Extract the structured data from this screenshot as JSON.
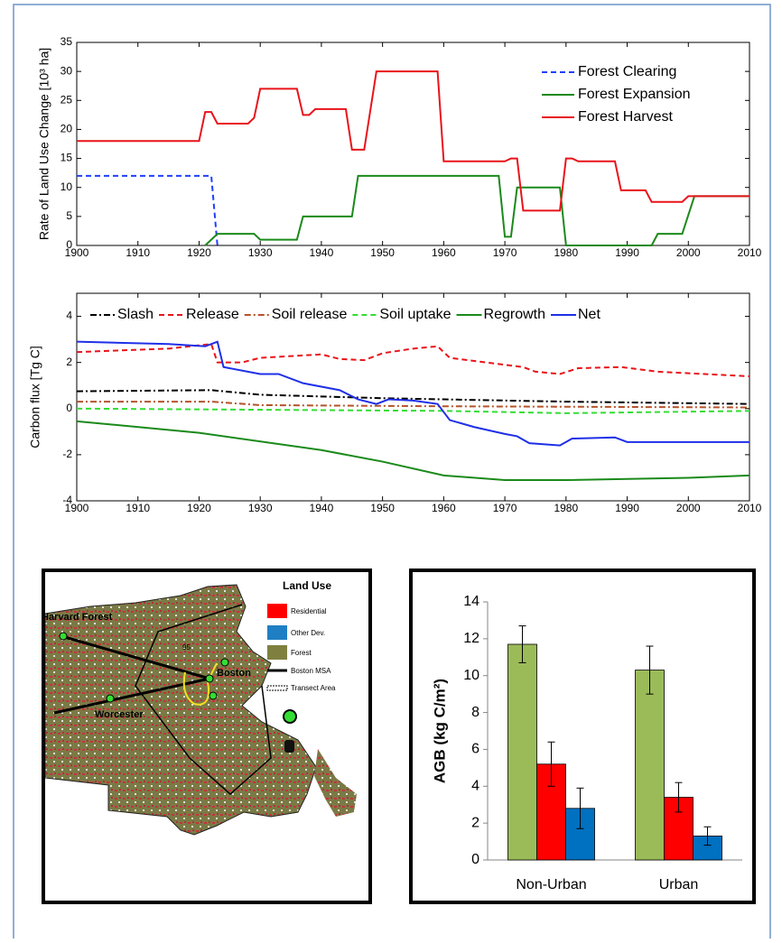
{
  "chart_data": [
    {
      "type": "line",
      "ylabel": "Rate of Land Use Change [10³ ha]",
      "xlim": [
        1900,
        2010
      ],
      "xticks": [
        1900,
        1910,
        1920,
        1930,
        1940,
        1950,
        1960,
        1970,
        1980,
        1990,
        2000,
        2010
      ],
      "ylim": [
        0,
        35
      ],
      "yticks": [
        0,
        5,
        10,
        15,
        20,
        25,
        30,
        35
      ],
      "legend": "upper right",
      "series": [
        {
          "name": "Forest Clearing",
          "color": "#1f3fff",
          "style": "dashed",
          "x": [
            1900,
            1922,
            1923
          ],
          "values": [
            12,
            12,
            0
          ]
        },
        {
          "name": "Forest Expansion",
          "color": "#1a8a1a",
          "style": "solid",
          "x": [
            1921,
            1923,
            1929,
            1930,
            1936,
            1937,
            1945,
            1946,
            1969,
            1970,
            1971,
            1972,
            1979,
            1980,
            1994,
            1995,
            1999,
            2001,
            2010
          ],
          "values": [
            0,
            2,
            2,
            1,
            1,
            5,
            5,
            12,
            12,
            1.5,
            1.5,
            10,
            10,
            0,
            0,
            2,
            2,
            8.5,
            8.5
          ]
        },
        {
          "name": "Forest Harvest",
          "color": "#e8141a",
          "style": "solid",
          "x": [
            1900,
            1920,
            1921,
            1922,
            1923,
            1928,
            1929,
            1930,
            1936,
            1937,
            1938,
            1939,
            1944,
            1945,
            1947,
            1949,
            1959,
            1960,
            1970,
            1971,
            1972,
            1973,
            1979,
            1980,
            1981,
            1982,
            1988,
            1989,
            1993,
            1994,
            1999,
            2000,
            2010
          ],
          "values": [
            18,
            18,
            23,
            23,
            21,
            21,
            22,
            27,
            27,
            22.5,
            22.5,
            23.5,
            23.5,
            16.5,
            16.5,
            30,
            30,
            14.5,
            14.5,
            15,
            15,
            6,
            6,
            15,
            15,
            14.5,
            14.5,
            9.5,
            9.5,
            7.5,
            7.5,
            8.5,
            8.5
          ]
        }
      ]
    },
    {
      "type": "line",
      "ylabel": "Carbon flux [Tg C]",
      "xlim": [
        1900,
        2010
      ],
      "xticks": [
        1900,
        1910,
        1920,
        1930,
        1940,
        1950,
        1960,
        1970,
        1980,
        1990,
        2000,
        2010
      ],
      "ylim": [
        -4,
        5
      ],
      "yticks": [
        -4,
        -2,
        0,
        2,
        4
      ],
      "legend": "upper center",
      "series": [
        {
          "name": "Slash",
          "color": "#000000",
          "style": "dashdot",
          "x": [
            1900,
            1922,
            1930,
            1950,
            1960,
            1980,
            2010
          ],
          "values": [
            0.75,
            0.8,
            0.6,
            0.45,
            0.4,
            0.3,
            0.2
          ]
        },
        {
          "name": "Release",
          "color": "#e8141a",
          "style": "dashed",
          "x": [
            1900,
            1915,
            1922,
            1923,
            1927,
            1930,
            1940,
            1943,
            1947,
            1950,
            1955,
            1959,
            1961,
            1970,
            1973,
            1975,
            1979,
            1982,
            1989,
            1995,
            2010
          ],
          "values": [
            2.45,
            2.6,
            2.8,
            2.0,
            2.0,
            2.2,
            2.35,
            2.15,
            2.1,
            2.4,
            2.6,
            2.7,
            2.2,
            1.9,
            1.8,
            1.6,
            1.5,
            1.75,
            1.8,
            1.6,
            1.4
          ]
        },
        {
          "name": "Soil release",
          "color": "#b5532a",
          "style": "dashdot",
          "x": [
            1900,
            1922,
            1930,
            1960,
            2010
          ],
          "values": [
            0.3,
            0.3,
            0.15,
            0.1,
            0.05
          ]
        },
        {
          "name": "Soil uptake",
          "color": "#33dd33",
          "style": "dashed",
          "x": [
            1900,
            1930,
            1960,
            1980,
            2010
          ],
          "values": [
            0,
            -0.05,
            -0.1,
            -0.2,
            -0.1
          ]
        },
        {
          "name": "Regrowth",
          "color": "#1a8a1a",
          "style": "solid",
          "x": [
            1900,
            1920,
            1940,
            1950,
            1960,
            1970,
            1980,
            2000,
            2010
          ],
          "values": [
            -0.55,
            -1.05,
            -1.8,
            -2.3,
            -2.9,
            -3.1,
            -3.1,
            -3.0,
            -2.9
          ]
        },
        {
          "name": "Net",
          "color": "#1f2fe8",
          "style": "solid",
          "x": [
            1900,
            1915,
            1921,
            1923,
            1924,
            1930,
            1933,
            1937,
            1943,
            1946,
            1949,
            1951,
            1955,
            1959,
            1961,
            1965,
            1970,
            1972,
            1974,
            1979,
            1981,
            1988,
            1990,
            2010
          ],
          "values": [
            2.9,
            2.8,
            2.7,
            2.9,
            1.8,
            1.5,
            1.5,
            1.1,
            0.8,
            0.4,
            0.2,
            0.4,
            0.35,
            0.2,
            -0.5,
            -0.8,
            -1.1,
            -1.2,
            -1.5,
            -1.6,
            -1.3,
            -1.25,
            -1.45,
            -1.45
          ]
        }
      ]
    },
    {
      "type": "bar",
      "ylabel": "AGB (kg C/m²)",
      "categories": [
        "Non-Urban",
        "Urban"
      ],
      "ylim": [
        0,
        14
      ],
      "yticks": [
        0,
        2,
        4,
        6,
        8,
        10,
        12,
        14
      ],
      "series": [
        {
          "color": "#9bbb59",
          "values": [
            11.7,
            10.3
          ],
          "errors": [
            1.0,
            1.3
          ]
        },
        {
          "color": "#ff0000",
          "values": [
            5.2,
            3.4
          ],
          "errors": [
            1.2,
            0.8
          ]
        },
        {
          "color": "#0070c0",
          "values": [
            2.8,
            1.3
          ],
          "errors": [
            1.1,
            0.5
          ]
        }
      ]
    }
  ],
  "map": {
    "legend_title": "Land Use",
    "legend": [
      "Residential",
      "Other Dev.",
      "Forest",
      "Boston MSA",
      "Transect Area"
    ],
    "places": [
      "Harvard Forest",
      "Worcester",
      "Boston",
      "95"
    ]
  }
}
